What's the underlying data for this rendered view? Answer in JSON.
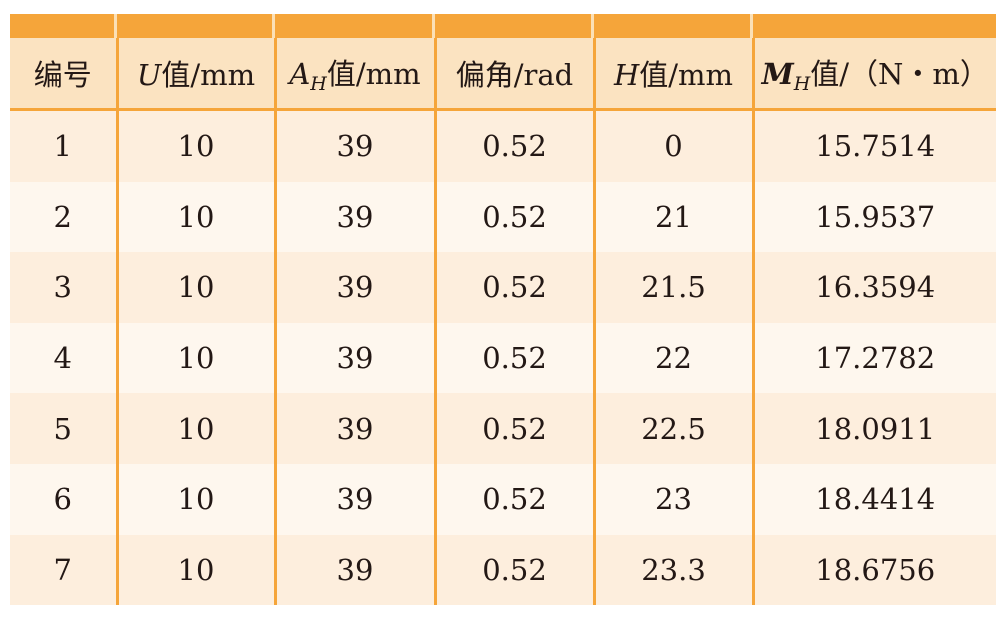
{
  "header": {
    "col0": "编号",
    "col1_var": "U",
    "col1_rest": "值/mm",
    "col2_var": "A",
    "col2_sub": "H",
    "col2_rest": "值/mm",
    "col3": "偏角/rad",
    "col4_var": "H",
    "col4_rest": "值/mm",
    "col5_var": "M",
    "col5_sub": "H",
    "col5_rest": "值/（N・m）"
  },
  "rows": [
    [
      "1",
      "10",
      "39",
      "0.52",
      "0",
      "15.7514"
    ],
    [
      "2",
      "10",
      "39",
      "0.52",
      "21",
      "15.9537"
    ],
    [
      "3",
      "10",
      "39",
      "0.52",
      "21.5",
      "16.3594"
    ],
    [
      "4",
      "10",
      "39",
      "0.52",
      "22",
      "17.2782"
    ],
    [
      "5",
      "10",
      "39",
      "0.52",
      "22.5",
      "18.0911"
    ],
    [
      "6",
      "10",
      "39",
      "0.52",
      "23",
      "18.4414"
    ],
    [
      "7",
      "10",
      "39",
      "0.52",
      "23.3",
      "18.6756"
    ]
  ],
  "colors": {
    "accent": "#f5a53a",
    "header_bg": "#fbe3c1",
    "row_odd": "#fdeedd",
    "row_even": "#fef7ee"
  }
}
